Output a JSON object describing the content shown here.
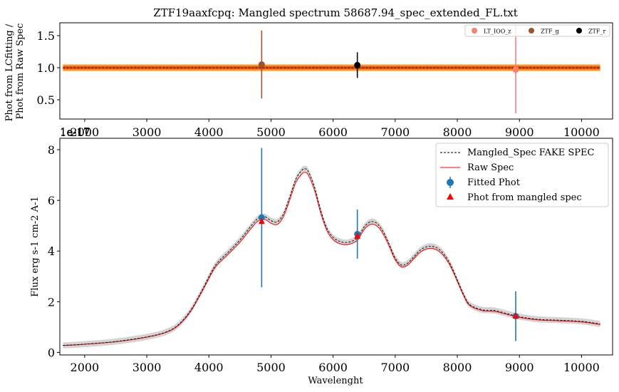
{
  "chart_data": [
    {
      "type": "scatter",
      "title": "ZTF19aaxfcpq: Mangled spectrum 58687.94_spec_extended_FL.txt",
      "ylabel_lines": [
        "Phot from LCfitting /",
        "Phot from Raw Spec"
      ],
      "xlabel": "",
      "xlim": [
        1600,
        10500
      ],
      "ylim": [
        0.2,
        1.7
      ],
      "xticks": [
        2000,
        3000,
        4000,
        5000,
        6000,
        7000,
        8000,
        9000,
        10000
      ],
      "yticks": [
        0.5,
        1.0,
        1.5
      ],
      "offset_text": "1e-17",
      "band": {
        "x": [
          1650,
          10300
        ],
        "y": 1.0,
        "halfwidth": 0.05,
        "color": "#ff9a1a",
        "line_color": "#e8391a"
      },
      "series": [
        {
          "name": "LT_IOO_z",
          "color": "#fa8072",
          "points": [
            {
              "x": 8940,
              "y": 0.97,
              "err": 0.68
            }
          ]
        },
        {
          "name": "ZTF_g",
          "color": "#a0522d",
          "points": [
            {
              "x": 4850,
              "y": 1.05,
              "err": 0.53
            }
          ]
        },
        {
          "name": "ZTF_r",
          "color": "#000000",
          "points": [
            {
              "x": 6390,
              "y": 1.04,
              "err": 0.2
            }
          ]
        }
      ],
      "legend_position": "top-right"
    },
    {
      "type": "line",
      "title": "",
      "xlabel": "Wavelenght",
      "ylabel": "Flux erg s-1 cm-2 A-1",
      "xlim": [
        1600,
        10500
      ],
      "ylim": [
        -0.1,
        8.45
      ],
      "xticks": [
        2000,
        3000,
        4000,
        5000,
        6000,
        7000,
        8000,
        9000,
        10000
      ],
      "yticks": [
        0,
        2,
        4,
        6,
        8
      ],
      "offset_text": "1e-17",
      "grid": false,
      "series": [
        {
          "name": "Mangled_Spec FAKE SPEC",
          "color": "#000000",
          "style": "dashed"
        },
        {
          "name": "Raw Spec",
          "color": "#ff0000",
          "style": "solid"
        },
        {
          "name": "Fitted Phot",
          "color": "#1f77b4",
          "marker": "circle",
          "points": [
            {
              "x": 4850,
              "y": 5.32,
              "err": 2.75
            },
            {
              "x": 6390,
              "y": 4.67,
              "err": 0.97
            },
            {
              "x": 8940,
              "y": 1.43,
              "err": 0.98
            }
          ]
        },
        {
          "name": "Phot from mangled spec",
          "color": "#ff0000",
          "marker": "triangle",
          "points": [
            {
              "x": 4850,
              "y": 5.18
            },
            {
              "x": 6390,
              "y": 4.6
            },
            {
              "x": 8940,
              "y": 1.45
            }
          ]
        }
      ],
      "spectrum": {
        "x": [
          1650,
          2000,
          2500,
          3000,
          3300,
          3500,
          3700,
          3900,
          4100,
          4300,
          4500,
          4700,
          4800,
          4900,
          5000,
          5100,
          5200,
          5300,
          5400,
          5500,
          5550,
          5600,
          5700,
          5800,
          5900,
          6000,
          6100,
          6200,
          6300,
          6400,
          6500,
          6600,
          6700,
          6800,
          6900,
          7000,
          7100,
          7200,
          7300,
          7400,
          7500,
          7600,
          7700,
          7800,
          7900,
          8000,
          8100,
          8200,
          8400,
          8600,
          8800,
          9000,
          9300,
          9600,
          10000,
          10300
        ],
        "y": [
          0.27,
          0.32,
          0.42,
          0.6,
          0.78,
          1.05,
          1.6,
          2.45,
          3.35,
          3.85,
          4.35,
          4.95,
          5.2,
          5.25,
          5.1,
          5.05,
          5.35,
          6.0,
          6.7,
          7.05,
          7.1,
          7.0,
          6.4,
          5.5,
          4.8,
          4.45,
          4.3,
          4.25,
          4.3,
          4.45,
          4.85,
          5.05,
          5.0,
          4.7,
          4.2,
          3.65,
          3.38,
          3.45,
          3.7,
          3.95,
          4.08,
          4.1,
          4.0,
          3.75,
          3.35,
          2.8,
          2.25,
          1.85,
          1.65,
          1.62,
          1.5,
          1.38,
          1.28,
          1.25,
          1.2,
          1.1
        ],
        "mangled_scale": 1.02,
        "uncertainty_halfwidth": 0.12,
        "uncertainty_color": "#d3d3d3"
      },
      "legend_position": "top-right"
    }
  ]
}
